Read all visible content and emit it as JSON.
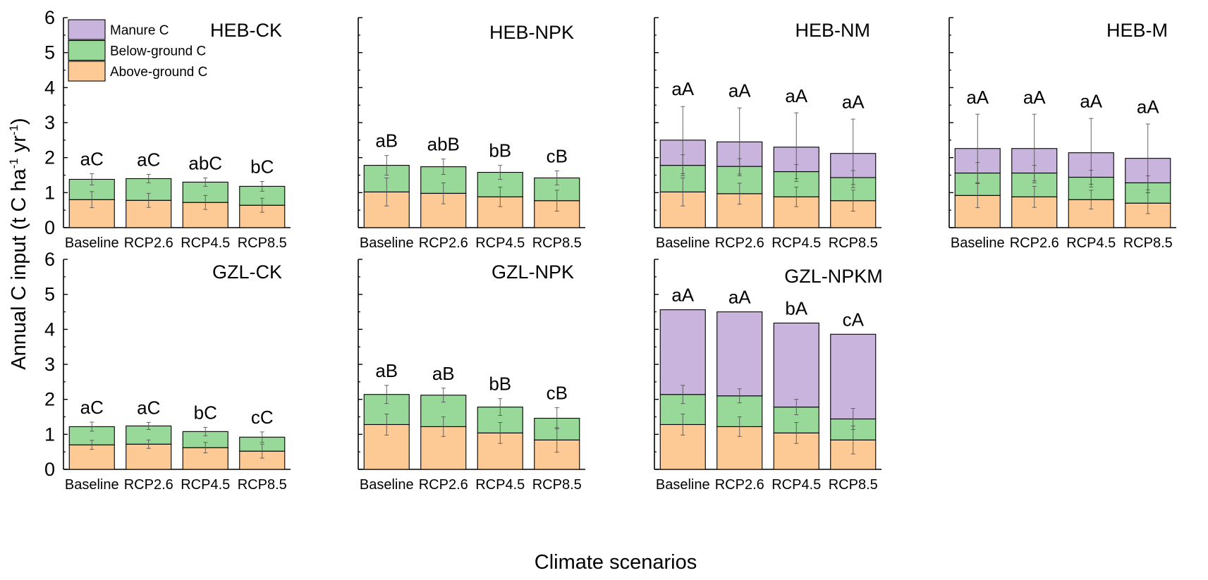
{
  "colors": {
    "manure": "#c8b4dc",
    "below": "#98d898",
    "above": "#fdc994",
    "axis": "#000000",
    "error": "#555555"
  },
  "figure": {
    "ylabel_main": "Annual C input (t C ha",
    "ylabel_sup1": "-1",
    "ylabel_mid": " yr",
    "ylabel_sup2": "-1",
    "ylabel_end": ")",
    "xlabel": "Climate scenarios"
  },
  "legend": [
    {
      "key": "manure",
      "label": "Manure C"
    },
    {
      "key": "below",
      "label": "Below-ground C"
    },
    {
      "key": "above",
      "label": "Above-ground C"
    }
  ],
  "chart_data": {
    "type": "bar",
    "stacked": true,
    "categories": [
      "Baseline",
      "RCP2.6",
      "RCP4.5",
      "RCP8.5"
    ],
    "ylim": [
      0,
      6
    ],
    "yticks": [
      "0",
      "1",
      "2",
      "3",
      "4",
      "5",
      "6"
    ],
    "xlabel": "Climate scenarios",
    "ylabel": "Annual C input (t C ha-1 yr-1)",
    "series_names": [
      "Above-ground C",
      "Below-ground C",
      "Manure C"
    ],
    "panels": [
      {
        "title": "HEB-CK",
        "row": 0,
        "col": 0,
        "above": [
          0.8,
          0.78,
          0.72,
          0.64
        ],
        "above_err": [
          0.23,
          0.2,
          0.2,
          0.2
        ],
        "below": [
          0.58,
          0.62,
          0.58,
          0.54
        ],
        "below_err": [
          0.16,
          0.12,
          0.12,
          0.14
        ],
        "manure": [
          0,
          0,
          0,
          0
        ],
        "manure_err": [
          0,
          0,
          0,
          0
        ],
        "labels": [
          "aC",
          "aC",
          "abC",
          "bC"
        ]
      },
      {
        "title": "HEB-NPK",
        "row": 0,
        "col": 1,
        "above": [
          1.02,
          0.98,
          0.88,
          0.77
        ],
        "above_err": [
          0.4,
          0.3,
          0.28,
          0.3
        ],
        "below": [
          0.76,
          0.76,
          0.7,
          0.65
        ],
        "below_err": [
          0.28,
          0.22,
          0.2,
          0.2
        ],
        "manure": [
          0,
          0,
          0,
          0
        ],
        "manure_err": [
          0,
          0,
          0,
          0
        ],
        "labels": [
          "aB",
          "abB",
          "bB",
          "cB"
        ]
      },
      {
        "title": "HEB-NM",
        "row": 0,
        "col": 2,
        "above": [
          1.02,
          0.97,
          0.88,
          0.77
        ],
        "above_err": [
          0.4,
          0.3,
          0.28,
          0.3
        ],
        "below": [
          0.76,
          0.78,
          0.72,
          0.66
        ],
        "below_err": [
          0.3,
          0.22,
          0.2,
          0.2
        ],
        "manure": [
          0.72,
          0.7,
          0.7,
          0.69
        ],
        "manure_err": [
          0.96,
          0.97,
          0.98,
          0.98
        ],
        "labels": [
          "aA",
          "aA",
          "aA",
          "aA"
        ]
      },
      {
        "title": "HEB-M",
        "row": 0,
        "col": 3,
        "above": [
          0.92,
          0.88,
          0.8,
          0.7
        ],
        "above_err": [
          0.35,
          0.3,
          0.27,
          0.3
        ],
        "below": [
          0.64,
          0.68,
          0.64,
          0.58
        ],
        "below_err": [
          0.3,
          0.22,
          0.2,
          0.2
        ],
        "manure": [
          0.7,
          0.7,
          0.7,
          0.7
        ],
        "manure_err": [
          0.98,
          0.98,
          0.98,
          0.98
        ],
        "labels": [
          "aA",
          "aA",
          "aA",
          "aA"
        ]
      },
      {
        "title": "GZL-CK",
        "row": 1,
        "col": 0,
        "above": [
          0.7,
          0.72,
          0.62,
          0.52
        ],
        "above_err": [
          0.13,
          0.12,
          0.15,
          0.2
        ],
        "below": [
          0.52,
          0.52,
          0.46,
          0.4
        ],
        "below_err": [
          0.13,
          0.1,
          0.12,
          0.15
        ],
        "manure": [
          0,
          0,
          0,
          0
        ],
        "manure_err": [
          0,
          0,
          0,
          0
        ],
        "labels": [
          "aC",
          "aC",
          "bC",
          "cC"
        ]
      },
      {
        "title": "GZL-NPK",
        "row": 1,
        "col": 1,
        "above": [
          1.28,
          1.22,
          1.04,
          0.84
        ],
        "above_err": [
          0.3,
          0.28,
          0.3,
          0.35
        ],
        "below": [
          0.86,
          0.9,
          0.74,
          0.62
        ],
        "below_err": [
          0.26,
          0.2,
          0.24,
          0.3
        ],
        "manure": [
          0,
          0,
          0,
          0
        ],
        "manure_err": [
          0,
          0,
          0,
          0
        ],
        "labels": [
          "aB",
          "aB",
          "bB",
          "cB"
        ]
      },
      {
        "title": "GZL-NPKM",
        "row": 1,
        "col": 2,
        "above": [
          1.28,
          1.22,
          1.04,
          0.84
        ],
        "above_err": [
          0.3,
          0.28,
          0.3,
          0.4
        ],
        "below": [
          0.86,
          0.88,
          0.74,
          0.6
        ],
        "below_err": [
          0.26,
          0.2,
          0.22,
          0.3
        ],
        "manure": [
          2.42,
          2.4,
          2.4,
          2.42
        ],
        "manure_err": [
          0,
          0,
          0,
          0
        ],
        "labels": [
          "aA",
          "aA",
          "bA",
          "cA"
        ]
      }
    ]
  }
}
